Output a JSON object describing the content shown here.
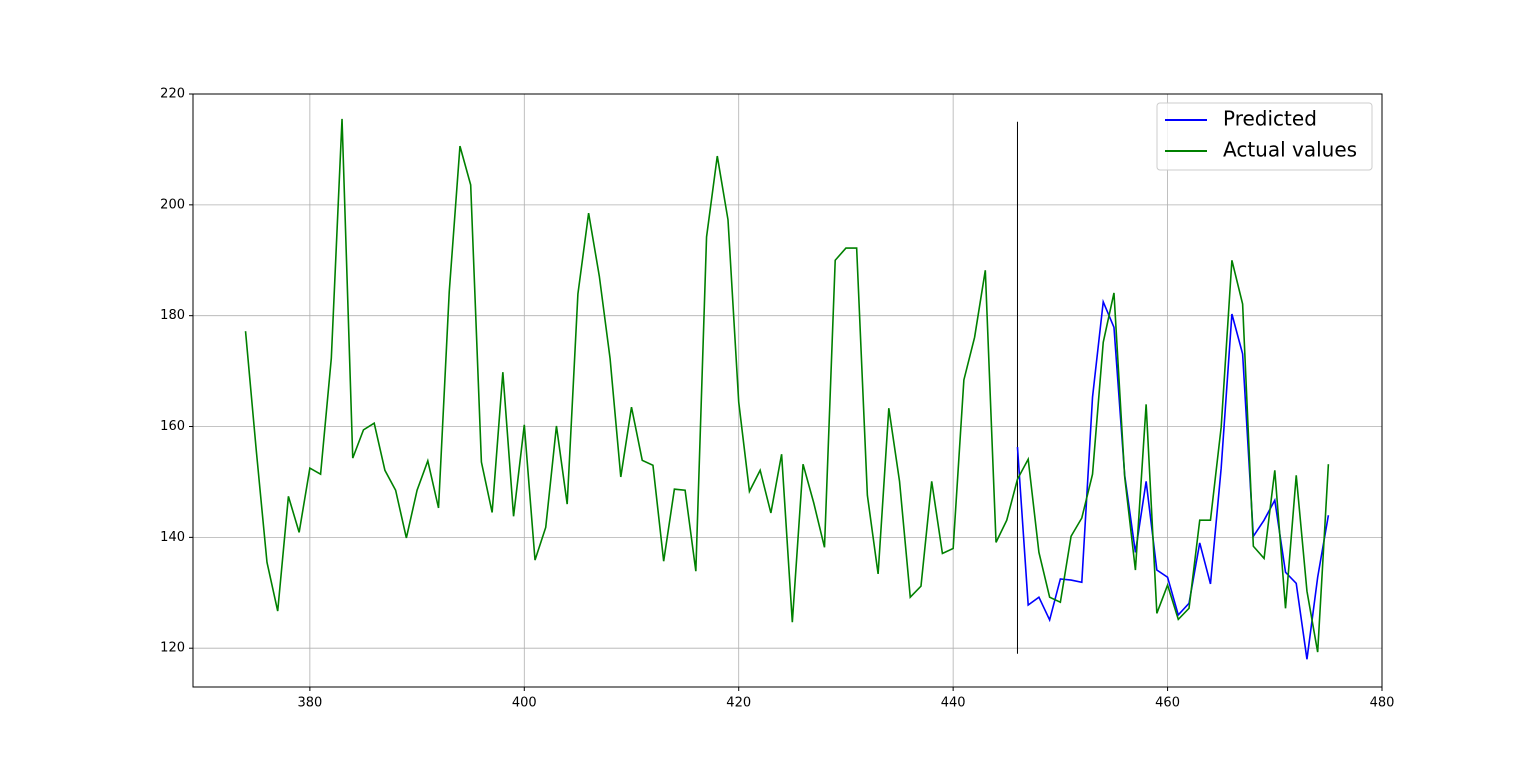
{
  "chart_data": {
    "type": "line",
    "xlim": [
      369.1,
      480
    ],
    "xticks": [
      380,
      400,
      420,
      440,
      460,
      480
    ],
    "ylim": [
      113,
      220
    ],
    "yticks": [
      120,
      140,
      160,
      180,
      200,
      220
    ],
    "grid": true,
    "legend": "upper right",
    "vline": {
      "x": 446,
      "ymin": 119,
      "ymax": 215,
      "color": "#000000"
    },
    "series": [
      {
        "name": "Predicted",
        "color": "#0000ff",
        "x": [
          446,
          447,
          448,
          449,
          450,
          451,
          452,
          453,
          454,
          455,
          456,
          457,
          458,
          459,
          460,
          461,
          462,
          463,
          464,
          465,
          466,
          467,
          468,
          469,
          470,
          471,
          472,
          473,
          474,
          475
        ],
        "values": [
          156.3,
          127.8,
          129.2,
          125.1,
          132.5,
          132.3,
          131.9,
          165.3,
          182.5,
          177.9,
          151.2,
          137.3,
          150.1,
          134.1,
          132.8,
          126,
          128.1,
          139,
          131.6,
          152.5,
          180.3,
          173.1,
          140.2,
          143.1,
          146.7,
          133.7,
          131.7,
          118,
          132.8,
          144
        ]
      },
      {
        "name": "Actual values",
        "color": "#008000",
        "x": [
          374,
          375,
          376,
          377,
          378,
          379,
          380,
          381,
          382,
          383,
          384,
          385,
          386,
          387,
          388,
          389,
          390,
          391,
          392,
          393,
          394,
          395,
          396,
          397,
          398,
          399,
          400,
          401,
          402,
          403,
          404,
          405,
          406,
          407,
          408,
          409,
          410,
          411,
          412,
          413,
          414,
          415,
          416,
          417,
          418,
          419,
          420,
          421,
          422,
          423,
          424,
          425,
          426,
          427,
          428,
          429,
          430,
          431,
          432,
          433,
          434,
          435,
          436,
          437,
          438,
          439,
          440,
          441,
          442,
          443,
          444,
          445,
          446,
          447,
          448,
          449,
          450,
          451,
          452,
          453,
          454,
          455,
          456,
          457,
          458,
          459,
          460,
          461,
          462,
          463,
          464,
          465,
          466,
          467,
          468,
          469,
          470,
          471,
          472,
          473,
          474,
          475
        ],
        "values": [
          177.2,
          155.7,
          135.5,
          126.7,
          147.4,
          140.9,
          152.5,
          151.4,
          172.3,
          215.5,
          154.3,
          159.4,
          160.6,
          152.1,
          148.5,
          139.9,
          148.5,
          153.8,
          145.3,
          184.3,
          210.6,
          203.6,
          153.6,
          144.5,
          169.8,
          143.8,
          160.3,
          135.9,
          141.8,
          160.1,
          146,
          183.9,
          198.5,
          187.1,
          172.3,
          150.9,
          163.5,
          153.9,
          153,
          135.7,
          148.7,
          148.5,
          133.9,
          194.2,
          208.8,
          197.3,
          164.4,
          148.3,
          152.1,
          144.4,
          155,
          124.7,
          153.2,
          146.2,
          138.2,
          190,
          192.2,
          192.2,
          147.6,
          133.4,
          163.3,
          150.1,
          129.2,
          131.2,
          150.1,
          137.1,
          138,
          168.4,
          176.1,
          188.2,
          139.1,
          143.1,
          150.5,
          154.1,
          137.3,
          129.2,
          128.3,
          140.2,
          143.5,
          151.4,
          175.2,
          184.1,
          150.9,
          134.1,
          164,
          126.3,
          131.4,
          125.2,
          127.2,
          143.1,
          143.1,
          159.9,
          190,
          182.1,
          138.4,
          136.2,
          152.1,
          127.2,
          151.2,
          130.3,
          119.3,
          153.2
        ]
      }
    ]
  }
}
